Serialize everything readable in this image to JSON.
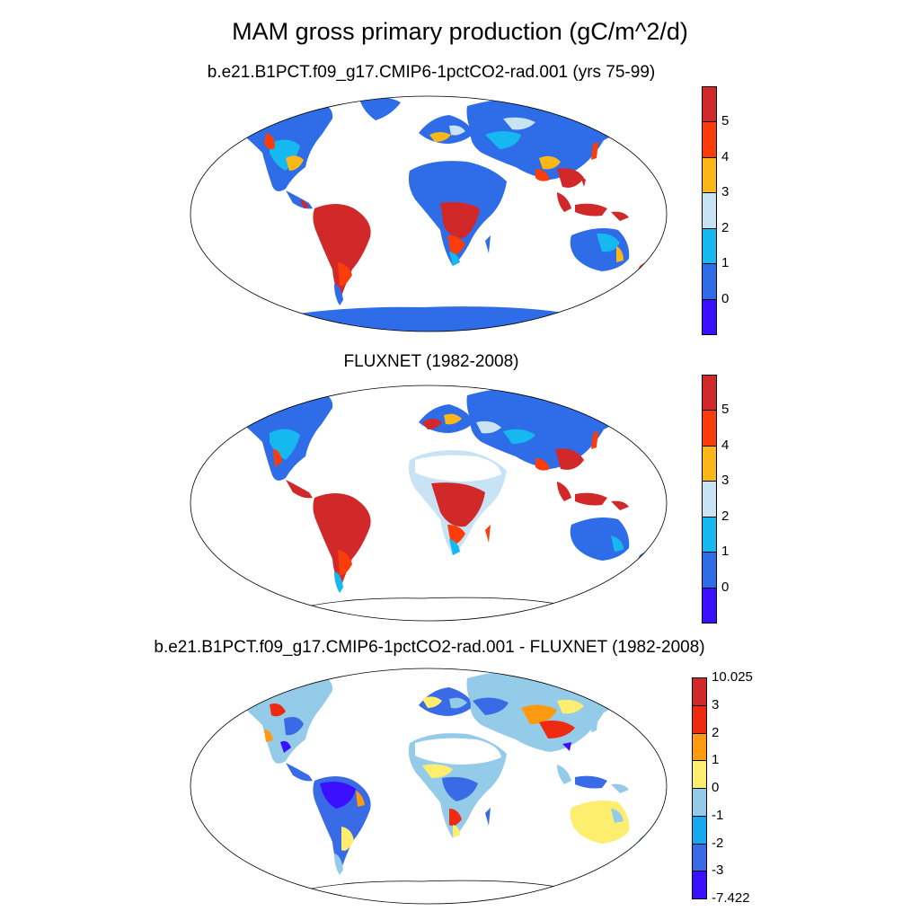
{
  "title": "MAM gross primary production (gC/m^2/d)",
  "panels": [
    {
      "label": "b.e21.B1PCT.f09_g17.CMIP6-1pctCO2-rad.001 (yrs 75-99)"
    },
    {
      "label": "FLUXNET (1982-2008)"
    },
    {
      "label": "b.e21.B1PCT.f09_g17.CMIP6-1pctCO2-rad.001 - FLUXNET (1982-2008)"
    }
  ],
  "colorbars": {
    "gpp": {
      "colors": [
        "#3b0fff",
        "#2f6ce8",
        "#16b8f0",
        "#c8e4f4",
        "#fbb717",
        "#fb3d0b",
        "#d1282a"
      ],
      "labels": [
        "0",
        "1",
        "2",
        "3",
        "4",
        "5"
      ]
    },
    "diff": {
      "colors": [
        "#3b0fff",
        "#3a6be6",
        "#16a8f0",
        "#94cbe8",
        "#fdee70",
        "#fd9a10",
        "#ee2a10",
        "#d1282a"
      ],
      "labels": [
        "-7.422",
        "-3",
        "-2",
        "-1",
        "0",
        "1",
        "2",
        "3",
        "10.025"
      ]
    }
  }
}
